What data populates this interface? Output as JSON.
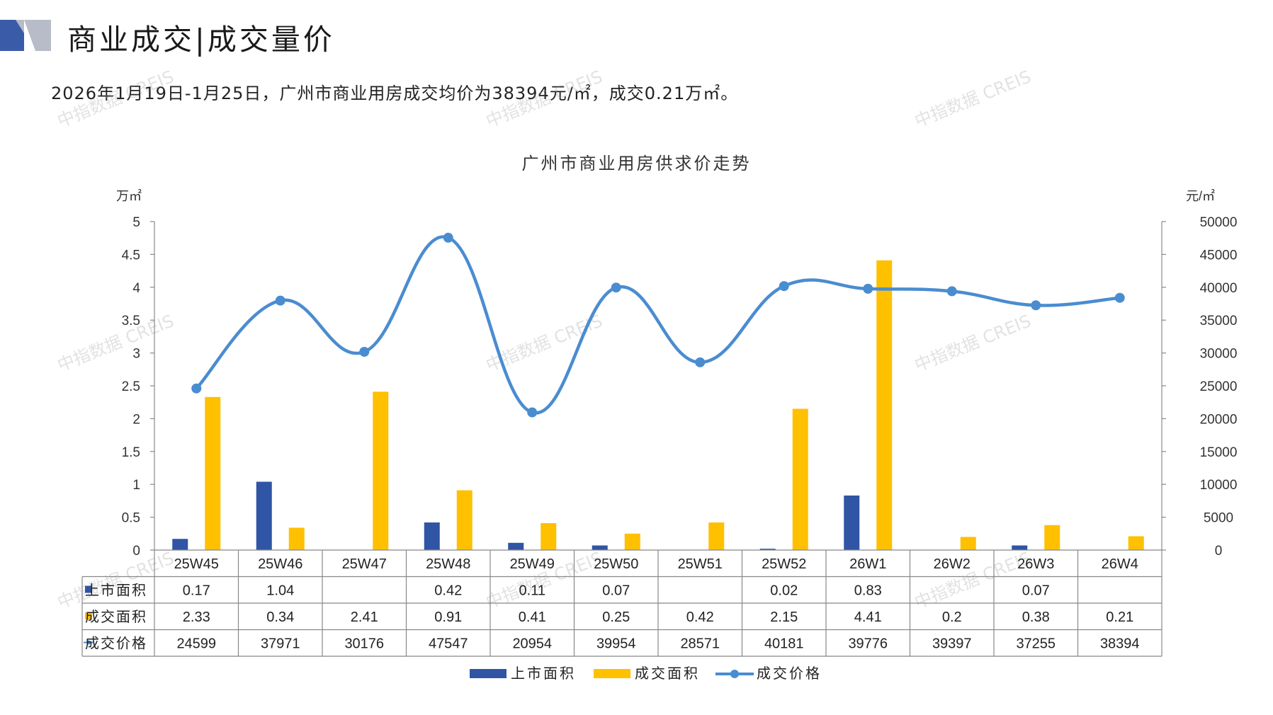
{
  "header": {
    "title": "商业成交|成交量价",
    "subtitle": "2026年1月19日-1月25日，广州市商业用房成交均价为38394元/㎡，成交0.21万㎡。"
  },
  "watermark_text": "中指数据 CREIS",
  "colors": {
    "listed": "#2f55a4",
    "traded": "#ffc000",
    "price": "#4a8cd0",
    "logo_dark": "#3a5ba8",
    "logo_light": "#b8bcc8"
  },
  "chart_data": {
    "type": "bar",
    "title": "广州市商业用房供求价走势",
    "ylabel_left": "万㎡",
    "ylabel_right": "元/㎡",
    "ylim_left": [
      0,
      5
    ],
    "ylim_right": [
      0,
      50000
    ],
    "yticks_left": [
      "0",
      "0.5",
      "1",
      "1.5",
      "2",
      "2.5",
      "3",
      "3.5",
      "4",
      "4.5",
      "5"
    ],
    "yticks_right": [
      "0",
      "5000",
      "10000",
      "15000",
      "20000",
      "25000",
      "30000",
      "35000",
      "40000",
      "45000",
      "50000"
    ],
    "categories": [
      "25W45",
      "25W46",
      "25W47",
      "25W48",
      "25W49",
      "25W50",
      "25W51",
      "25W52",
      "26W1",
      "26W2",
      "26W3",
      "26W4"
    ],
    "series": [
      {
        "name": "上市面积",
        "type": "bar",
        "axis": "left",
        "values": [
          0.17,
          1.04,
          null,
          0.42,
          0.11,
          0.07,
          null,
          0.02,
          0.83,
          null,
          0.07,
          null
        ],
        "labels": [
          "0.17",
          "1.04",
          "",
          "0.42",
          "0.11",
          "0.07",
          "",
          "0.02",
          "0.83",
          "",
          "0.07",
          ""
        ]
      },
      {
        "name": "成交面积",
        "type": "bar",
        "axis": "left",
        "values": [
          2.33,
          0.34,
          2.41,
          0.91,
          0.41,
          0.25,
          0.42,
          2.15,
          4.41,
          0.2,
          0.38,
          0.21
        ],
        "labels": [
          "2.33",
          "0.34",
          "2.41",
          "0.91",
          "0.41",
          "0.25",
          "0.42",
          "2.15",
          "4.41",
          "0.2",
          "0.38",
          "0.21"
        ]
      },
      {
        "name": "成交价格",
        "type": "line",
        "axis": "right",
        "values": [
          24599,
          37971,
          30176,
          47547,
          20954,
          39954,
          28571,
          40181,
          39776,
          39397,
          37255,
          38394
        ],
        "labels": [
          "24599",
          "37971",
          "30176",
          "47547",
          "20954",
          "39954",
          "28571",
          "40181",
          "39776",
          "39397",
          "37255",
          "38394"
        ]
      }
    ],
    "grid": false,
    "legend_position": "bottom"
  }
}
